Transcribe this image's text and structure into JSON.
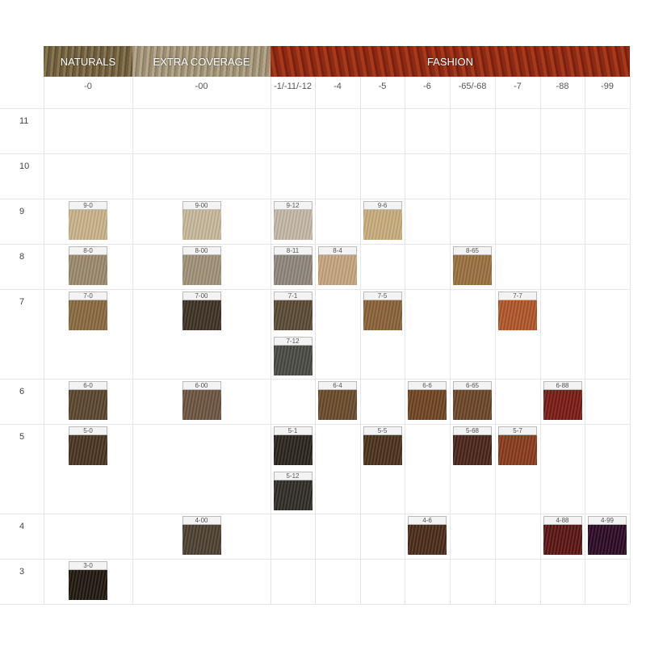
{
  "groups": [
    {
      "label": "NATURALS",
      "span": 1
    },
    {
      "label": "EXTRA COVERAGE",
      "span": 1
    },
    {
      "label": "FASHION",
      "span": 8
    }
  ],
  "columns": [
    "-0",
    "-00",
    "-1/-11/-12",
    "-4",
    "-5",
    "-6",
    "-65/-68",
    "-7",
    "-88",
    "-99"
  ],
  "rows": [
    {
      "label": "11",
      "cells": [
        [],
        [],
        [],
        [],
        [],
        [],
        [],
        [],
        [],
        []
      ]
    },
    {
      "label": "10",
      "cells": [
        [],
        [],
        [],
        [],
        [],
        [],
        [],
        [],
        [],
        []
      ]
    },
    {
      "label": "9",
      "cells": [
        [
          {
            "label": "9-0",
            "color": "#c9b48a"
          }
        ],
        [
          {
            "label": "9-00",
            "color": "#c7b99a"
          }
        ],
        [
          {
            "label": "9-12",
            "color": "#c4b9a6"
          }
        ],
        [],
        [
          {
            "label": "9-6",
            "color": "#c9ad7c"
          }
        ],
        [],
        [],
        [],
        [],
        []
      ]
    },
    {
      "label": "8",
      "cells": [
        [
          {
            "label": "8-0",
            "color": "#9c8a6c"
          }
        ],
        [
          {
            "label": "8-00",
            "color": "#a09178"
          }
        ],
        [
          {
            "label": "8-11",
            "color": "#8f877c"
          }
        ],
        [
          {
            "label": "8-4",
            "color": "#c7a57f"
          }
        ],
        [],
        [],
        [
          {
            "label": "8-65",
            "color": "#9a7040"
          }
        ],
        [],
        [],
        []
      ]
    },
    {
      "label": "7",
      "cells": [
        [
          {
            "label": "7-0",
            "color": "#8a6a40"
          }
        ],
        [
          {
            "label": "7-00",
            "color": "#3f3124"
          }
        ],
        [
          {
            "label": "7-1",
            "color": "#5a4a36"
          },
          {
            "label": "7-12",
            "color": "#4a4a44"
          }
        ],
        [],
        [
          {
            "label": "7-5",
            "color": "#8a6238"
          }
        ],
        [],
        [],
        [
          {
            "label": "7-7",
            "color": "#b0562a"
          }
        ],
        [],
        []
      ]
    },
    {
      "label": "6",
      "cells": [
        [
          {
            "label": "6-0",
            "color": "#5a452e"
          }
        ],
        [
          {
            "label": "6-00",
            "color": "#6b5540"
          }
        ],
        [],
        [
          {
            "label": "6-4",
            "color": "#6a4a2a"
          }
        ],
        [],
        [
          {
            "label": "6-6",
            "color": "#6e4420"
          }
        ],
        [
          {
            "label": "6-65",
            "color": "#6a4528"
          }
        ],
        [],
        [
          {
            "label": "6-88",
            "color": "#7a1a14"
          }
        ],
        []
      ]
    },
    {
      "label": "5",
      "cells": [
        [
          {
            "label": "5-0",
            "color": "#4a3420"
          }
        ],
        [],
        [
          {
            "label": "5-1",
            "color": "#2a241e"
          },
          {
            "label": "5-12",
            "color": "#302c28"
          }
        ],
        [],
        [
          {
            "label": "5-5",
            "color": "#4a321c"
          }
        ],
        [],
        [
          {
            "label": "5-68",
            "color": "#4a2418"
          }
        ],
        [
          {
            "label": "5-7",
            "color": "#8a3a1c"
          }
        ],
        [],
        []
      ]
    },
    {
      "label": "4",
      "cells": [
        [],
        [
          {
            "label": "4-00",
            "color": "#4d4030"
          }
        ],
        [],
        [],
        [],
        [
          {
            "label": "4-6",
            "color": "#4a2a18"
          }
        ],
        [],
        [],
        [
          {
            "label": "4-88",
            "color": "#5a1414"
          }
        ],
        [
          {
            "label": "4-99",
            "color": "#2a0a24"
          }
        ]
      ]
    },
    {
      "label": "3",
      "cells": [
        [
          {
            "label": "3-0",
            "color": "#1f1810"
          }
        ],
        [],
        [],
        [],
        [],
        [],
        [],
        [],
        [],
        []
      ]
    }
  ]
}
